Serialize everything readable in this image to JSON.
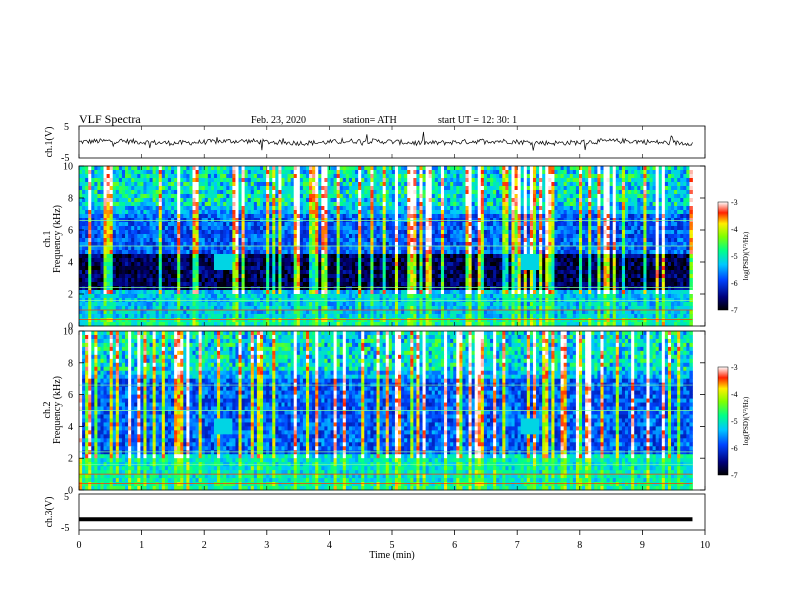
{
  "header": {
    "title": "VLF  Spectra",
    "date": "Feb. 23, 2020",
    "station": "station= ATH",
    "start": "start  UT  =    12: 30: 1"
  },
  "chart_data": [
    {
      "panel": "ch1-waveform",
      "type": "line",
      "ylabel": "ch.1(V)",
      "ylim": [
        -5,
        5
      ],
      "yticks": [
        "5",
        "-5"
      ],
      "xlim": [
        0,
        10
      ],
      "x_end": 9.8,
      "baseline": 0,
      "noise_amplitude_approx": 0.8
    },
    {
      "panel": "ch1-spectrogram",
      "type": "heatmap",
      "ylabel": "ch.1 Frequency (kHz)",
      "ylim": [
        0,
        10
      ],
      "yticks": [
        "0",
        "2",
        "4",
        "6",
        "8",
        "10"
      ],
      "xlim": [
        0,
        10
      ],
      "x_end": 9.8,
      "colorbar": {
        "label": "log(PSD)(V²/Hz)",
        "range": [
          -7,
          -3
        ],
        "ticks": [
          "-3",
          "-4",
          "-5",
          "-6",
          "-7"
        ]
      }
    },
    {
      "panel": "ch2-spectrogram",
      "type": "heatmap",
      "ylabel": "ch.2 Frequency (kHz)",
      "ylim": [
        0,
        10
      ],
      "yticks": [
        "0",
        "2",
        "4",
        "6",
        "8",
        "10"
      ],
      "xlim": [
        0,
        10
      ],
      "x_end": 9.8,
      "colorbar": {
        "label": "log(PSD)(V²/Hz)",
        "range": [
          -7,
          -3
        ],
        "ticks": [
          "-3",
          "-4",
          "-5",
          "-6",
          "-7"
        ]
      }
    },
    {
      "panel": "ch3-waveform",
      "type": "line",
      "ylabel": "ch.3(V)",
      "ylim": [
        -5,
        5
      ],
      "yticks": [
        "5",
        "-5"
      ],
      "xlim": [
        0,
        10
      ],
      "x_end": 9.8,
      "baseline": -2
    }
  ],
  "xaxis": {
    "label": "Time  (min)",
    "ticks": [
      "0",
      "1",
      "2",
      "3",
      "4",
      "5",
      "6",
      "7",
      "8",
      "9",
      "10"
    ]
  }
}
